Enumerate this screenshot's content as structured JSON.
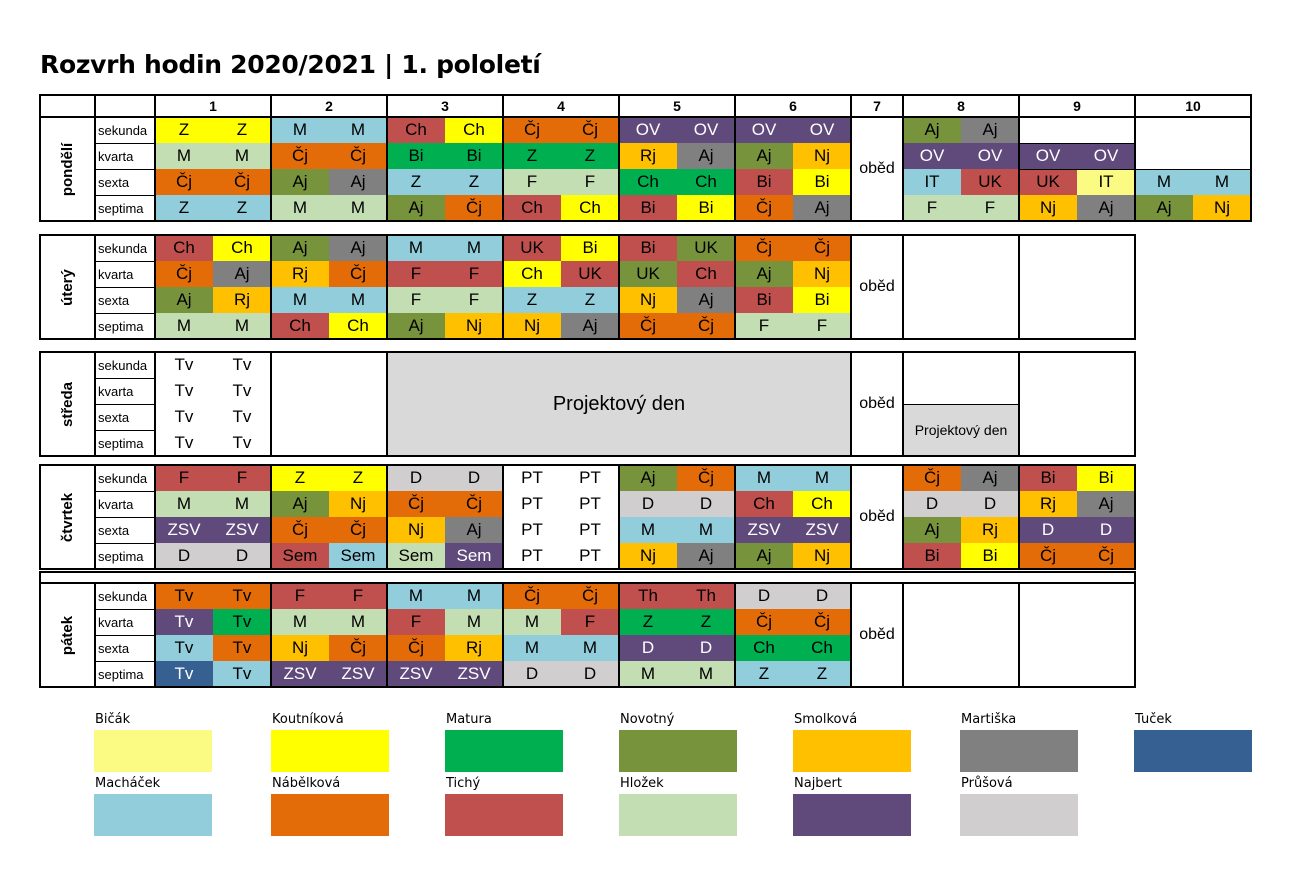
{
  "title": "Rozvrh hodin 2020/2021 | 1. pololetí",
  "periods": [
    "1",
    "2",
    "3",
    "4",
    "5",
    "6",
    "7",
    "8",
    "9",
    "10"
  ],
  "classes": [
    "sekunda",
    "kvarta",
    "sexta",
    "septima"
  ],
  "lunch_label": "oběd",
  "colors": {
    "Bicak": "#FBFA83",
    "Koutnikova": "#FFFF00",
    "Matura": "#00B050",
    "Novotny": "#77933C",
    "Smolkova": "#FFC000",
    "Martiska": "#808080",
    "Tucek": "#376092",
    "Machacek": "#92CDDC",
    "Nabelkova": "#E36C09",
    "Tichy": "#C0504D",
    "Hlozek": "#C4DEB3",
    "Najbert": "#604A7B",
    "Prusova": "#D0CECE",
    "none": "#FFFFFF"
  },
  "legend": [
    {
      "name": "Bičák",
      "color": "Bicak"
    },
    {
      "name": "Koutníková",
      "color": "Koutnikova"
    },
    {
      "name": "Matura",
      "color": "Matura"
    },
    {
      "name": "Novotný",
      "color": "Novotny"
    },
    {
      "name": "Smolková",
      "color": "Smolkova"
    },
    {
      "name": "Martiška",
      "color": "Martiska"
    },
    {
      "name": "Tuček",
      "color": "Tucek"
    },
    {
      "name": "Macháček",
      "color": "Machacek"
    },
    {
      "name": "Nábělková",
      "color": "Nabelkova"
    },
    {
      "name": "Tichý",
      "color": "Tichy"
    },
    {
      "name": "Hložek",
      "color": "Hlozek"
    },
    {
      "name": "Najbert",
      "color": "Najbert"
    },
    {
      "name": "Průšová",
      "color": "Prusova"
    }
  ],
  "days": [
    {
      "name": "pondělí",
      "periods_before_lunch": 6,
      "periods_after_lunch": 3,
      "rows": [
        [
          [
            "Z",
            "Koutnikova"
          ],
          [
            "Z",
            "Koutnikova"
          ],
          [
            "M",
            "Machacek"
          ],
          [
            "M",
            "Machacek"
          ],
          [
            "Ch",
            "Tichy"
          ],
          [
            "Ch",
            "Koutnikova"
          ],
          [
            "Čj",
            "Nabelkova"
          ],
          [
            "Čj",
            "Nabelkova"
          ],
          [
            "OV",
            "Najbert"
          ],
          [
            "OV",
            "Najbert"
          ],
          [
            "OV",
            "Najbert"
          ],
          [
            "OV",
            "Najbert"
          ],
          [
            "Aj",
            "Novotny"
          ],
          [
            "Aj",
            "Martiska"
          ],
          [
            "",
            ""
          ],
          [
            "",
            ""
          ],
          [
            "",
            ""
          ],
          [
            "",
            ""
          ]
        ],
        [
          [
            "M",
            "Hlozek"
          ],
          [
            "M",
            "Hlozek"
          ],
          [
            "Čj",
            "Nabelkova"
          ],
          [
            "Čj",
            "Nabelkova"
          ],
          [
            "Bi",
            "Matura"
          ],
          [
            "Bi",
            "Matura"
          ],
          [
            "Z",
            "Matura"
          ],
          [
            "Z",
            "Matura"
          ],
          [
            "Rj",
            "Smolkova"
          ],
          [
            "Aj",
            "Martiska"
          ],
          [
            "Aj",
            "Novotny"
          ],
          [
            "Nj",
            "Smolkova"
          ],
          [
            "OV",
            "Najbert"
          ],
          [
            "OV",
            "Najbert"
          ],
          [
            "OV",
            "Najbert"
          ],
          [
            "OV",
            "Najbert"
          ],
          [
            "",
            ""
          ],
          [
            "",
            ""
          ]
        ],
        [
          [
            "Čj",
            "Nabelkova"
          ],
          [
            "Čj",
            "Nabelkova"
          ],
          [
            "Aj",
            "Novotny"
          ],
          [
            "Aj",
            "Martiska"
          ],
          [
            "Z",
            "Machacek"
          ],
          [
            "Z",
            "Machacek"
          ],
          [
            "F",
            "Hlozek"
          ],
          [
            "F",
            "Hlozek"
          ],
          [
            "Ch",
            "Matura"
          ],
          [
            "Ch",
            "Matura"
          ],
          [
            "Bi",
            "Tichy"
          ],
          [
            "Bi",
            "Koutnikova"
          ],
          [
            "IT",
            "Machacek"
          ],
          [
            "UK",
            "Tichy"
          ],
          [
            "UK",
            "Tichy"
          ],
          [
            "IT",
            "Bicak"
          ],
          [
            "M",
            "Machacek"
          ],
          [
            "M",
            "Machacek"
          ]
        ],
        [
          [
            "Z",
            "Machacek"
          ],
          [
            "Z",
            "Machacek"
          ],
          [
            "M",
            "Hlozek"
          ],
          [
            "M",
            "Hlozek"
          ],
          [
            "Aj",
            "Novotny"
          ],
          [
            "Čj",
            "Nabelkova"
          ],
          [
            "Ch",
            "Tichy"
          ],
          [
            "Ch",
            "Koutnikova"
          ],
          [
            "Bi",
            "Tichy"
          ],
          [
            "Bi",
            "Koutnikova"
          ],
          [
            "Čj",
            "Nabelkova"
          ],
          [
            "Aj",
            "Martiska"
          ],
          [
            "F",
            "Hlozek"
          ],
          [
            "F",
            "Hlozek"
          ],
          [
            "Nj",
            "Smolkova"
          ],
          [
            "Aj",
            "Martiska"
          ],
          [
            "Aj",
            "Novotny"
          ],
          [
            "Nj",
            "Smolkova"
          ]
        ]
      ]
    },
    {
      "name": "úterý",
      "periods_before_lunch": 6,
      "periods_after_lunch": 2,
      "rows": [
        [
          [
            "Ch",
            "Tichy"
          ],
          [
            "Ch",
            "Koutnikova"
          ],
          [
            "Aj",
            "Novotny"
          ],
          [
            "Aj",
            "Martiska"
          ],
          [
            "M",
            "Machacek"
          ],
          [
            "M",
            "Machacek"
          ],
          [
            "UK",
            "Tichy"
          ],
          [
            "Bi",
            "Koutnikova"
          ],
          [
            "Bi",
            "Tichy"
          ],
          [
            "UK",
            "Novotny"
          ],
          [
            "Čj",
            "Nabelkova"
          ],
          [
            "Čj",
            "Nabelkova"
          ],
          [
            "",
            ""
          ],
          [
            "",
            ""
          ],
          [
            "",
            ""
          ],
          [
            "",
            ""
          ]
        ],
        [
          [
            "Čj",
            "Nabelkova"
          ],
          [
            "Aj",
            "Martiska"
          ],
          [
            "Rj",
            "Smolkova"
          ],
          [
            "Čj",
            "Nabelkova"
          ],
          [
            "F",
            "Tichy"
          ],
          [
            "F",
            "Tichy"
          ],
          [
            "Ch",
            "Koutnikova"
          ],
          [
            "UK",
            "Tichy"
          ],
          [
            "UK",
            "Novotny"
          ],
          [
            "Ch",
            "Tichy"
          ],
          [
            "Aj",
            "Novotny"
          ],
          [
            "Nj",
            "Smolkova"
          ],
          [
            "",
            ""
          ],
          [
            "",
            ""
          ],
          [
            "",
            ""
          ],
          [
            "",
            ""
          ]
        ],
        [
          [
            "Aj",
            "Novotny"
          ],
          [
            "Rj",
            "Smolkova"
          ],
          [
            "M",
            "Machacek"
          ],
          [
            "M",
            "Machacek"
          ],
          [
            "F",
            "Hlozek"
          ],
          [
            "F",
            "Hlozek"
          ],
          [
            "Z",
            "Machacek"
          ],
          [
            "Z",
            "Machacek"
          ],
          [
            "Nj",
            "Smolkova"
          ],
          [
            "Aj",
            "Martiska"
          ],
          [
            "Bi",
            "Tichy"
          ],
          [
            "Bi",
            "Koutnikova"
          ],
          [
            "",
            ""
          ],
          [
            "",
            ""
          ],
          [
            "",
            ""
          ],
          [
            "",
            ""
          ]
        ],
        [
          [
            "M",
            "Hlozek"
          ],
          [
            "M",
            "Hlozek"
          ],
          [
            "Ch",
            "Tichy"
          ],
          [
            "Ch",
            "Koutnikova"
          ],
          [
            "Aj",
            "Novotny"
          ],
          [
            "Nj",
            "Smolkova"
          ],
          [
            "Nj",
            "Smolkova"
          ],
          [
            "Aj",
            "Martiska"
          ],
          [
            "Čj",
            "Nabelkova"
          ],
          [
            "Čj",
            "Nabelkova"
          ],
          [
            "F",
            "Hlozek"
          ],
          [
            "F",
            "Hlozek"
          ],
          [
            "",
            ""
          ],
          [
            "",
            ""
          ],
          [
            "",
            ""
          ],
          [
            "",
            ""
          ]
        ]
      ]
    },
    {
      "name": "středa",
      "project_label": "Projektový den",
      "project_small_label": "Projektový den",
      "rows": [
        [
          [
            "Tv",
            "none"
          ],
          [
            "Tv",
            "none"
          ]
        ],
        [
          [
            "Tv",
            "none"
          ],
          [
            "Tv",
            "none"
          ]
        ],
        [
          [
            "Tv",
            "none"
          ],
          [
            "Tv",
            "none"
          ]
        ],
        [
          [
            "Tv",
            "none"
          ],
          [
            "Tv",
            "none"
          ]
        ]
      ]
    },
    {
      "name": "čtvrtek",
      "periods_before_lunch": 6,
      "periods_after_lunch": 2,
      "rows": [
        [
          [
            "F",
            "Tichy"
          ],
          [
            "F",
            "Tichy"
          ],
          [
            "Z",
            "Koutnikova"
          ],
          [
            "Z",
            "Koutnikova"
          ],
          [
            "D",
            "Prusova"
          ],
          [
            "D",
            "Prusova"
          ],
          [
            "PT",
            "none"
          ],
          [
            "PT",
            "none"
          ],
          [
            "Aj",
            "Novotny"
          ],
          [
            "Čj",
            "Nabelkova"
          ],
          [
            "M",
            "Machacek"
          ],
          [
            "M",
            "Machacek"
          ],
          [
            "Čj",
            "Nabelkova"
          ],
          [
            "Aj",
            "Martiska"
          ],
          [
            "Bi",
            "Tichy"
          ],
          [
            "Bi",
            "Koutnikova"
          ]
        ],
        [
          [
            "M",
            "Hlozek"
          ],
          [
            "M",
            "Hlozek"
          ],
          [
            "Aj",
            "Novotny"
          ],
          [
            "Nj",
            "Smolkova"
          ],
          [
            "Čj",
            "Nabelkova"
          ],
          [
            "Čj",
            "Nabelkova"
          ],
          [
            "PT",
            "none"
          ],
          [
            "PT",
            "none"
          ],
          [
            "D",
            "Prusova"
          ],
          [
            "D",
            "Prusova"
          ],
          [
            "Ch",
            "Tichy"
          ],
          [
            "Ch",
            "Koutnikova"
          ],
          [
            "D",
            "Prusova"
          ],
          [
            "D",
            "Prusova"
          ],
          [
            "Rj",
            "Smolkova"
          ],
          [
            "Aj",
            "Martiska"
          ]
        ],
        [
          [
            "ZSV",
            "Najbert"
          ],
          [
            "ZSV",
            "Najbert"
          ],
          [
            "Čj",
            "Nabelkova"
          ],
          [
            "Čj",
            "Nabelkova"
          ],
          [
            "Nj",
            "Smolkova"
          ],
          [
            "Aj",
            "Martiska"
          ],
          [
            "PT",
            "none"
          ],
          [
            "PT",
            "none"
          ],
          [
            "M",
            "Machacek"
          ],
          [
            "M",
            "Machacek"
          ],
          [
            "ZSV",
            "Najbert"
          ],
          [
            "ZSV",
            "Najbert"
          ],
          [
            "Aj",
            "Novotny"
          ],
          [
            "Rj",
            "Smolkova"
          ],
          [
            "D",
            "Najbert"
          ],
          [
            "D",
            "Najbert"
          ]
        ],
        [
          [
            "D",
            "Prusova"
          ],
          [
            "D",
            "Prusova"
          ],
          [
            "Sem",
            "Tichy"
          ],
          [
            "Sem",
            "Machacek"
          ],
          [
            "Sem",
            "Hlozek"
          ],
          [
            "Sem",
            "Najbert"
          ],
          [
            "PT",
            "none"
          ],
          [
            "PT",
            "none"
          ],
          [
            "Nj",
            "Smolkova"
          ],
          [
            "Aj",
            "Martiska"
          ],
          [
            "Aj",
            "Novotny"
          ],
          [
            "Nj",
            "Smolkova"
          ],
          [
            "Bi",
            "Tichy"
          ],
          [
            "Bi",
            "Koutnikova"
          ],
          [
            "Čj",
            "Nabelkova"
          ],
          [
            "Čj",
            "Nabelkova"
          ]
        ]
      ]
    },
    {
      "name": "pátek",
      "periods_before_lunch": 6,
      "periods_after_lunch": 2,
      "rows": [
        [
          [
            "Tv",
            "Nabelkova"
          ],
          [
            "Tv",
            "Nabelkova"
          ],
          [
            "F",
            "Tichy"
          ],
          [
            "F",
            "Tichy"
          ],
          [
            "M",
            "Machacek"
          ],
          [
            "M",
            "Machacek"
          ],
          [
            "Čj",
            "Nabelkova"
          ],
          [
            "Čj",
            "Nabelkova"
          ],
          [
            "Th",
            "Tichy"
          ],
          [
            "Th",
            "Tichy"
          ],
          [
            "D",
            "Prusova"
          ],
          [
            "D",
            "Prusova"
          ],
          [
            "",
            ""
          ],
          [
            "",
            ""
          ],
          [
            "",
            ""
          ],
          [
            "",
            ""
          ]
        ],
        [
          [
            "Tv",
            "Najbert"
          ],
          [
            "Tv",
            "Matura"
          ],
          [
            "M",
            "Hlozek"
          ],
          [
            "M",
            "Hlozek"
          ],
          [
            "F",
            "Tichy"
          ],
          [
            "M",
            "Hlozek"
          ],
          [
            "M",
            "Hlozek"
          ],
          [
            "F",
            "Tichy"
          ],
          [
            "Z",
            "Matura"
          ],
          [
            "Z",
            "Matura"
          ],
          [
            "Čj",
            "Nabelkova"
          ],
          [
            "Čj",
            "Nabelkova"
          ],
          [
            "",
            ""
          ],
          [
            "",
            ""
          ],
          [
            "",
            ""
          ],
          [
            "",
            ""
          ]
        ],
        [
          [
            "Tv",
            "Machacek"
          ],
          [
            "Tv",
            "Nabelkova"
          ],
          [
            "Nj",
            "Smolkova"
          ],
          [
            "Čj",
            "Nabelkova"
          ],
          [
            "Čj",
            "Nabelkova"
          ],
          [
            "Rj",
            "Smolkova"
          ],
          [
            "M",
            "Machacek"
          ],
          [
            "M",
            "Machacek"
          ],
          [
            "D",
            "Najbert"
          ],
          [
            "D",
            "Najbert"
          ],
          [
            "Ch",
            "Matura"
          ],
          [
            "Ch",
            "Matura"
          ],
          [
            "",
            ""
          ],
          [
            "",
            ""
          ],
          [
            "",
            ""
          ],
          [
            "",
            ""
          ]
        ],
        [
          [
            "Tv",
            "Tucek"
          ],
          [
            "Tv",
            "Machacek"
          ],
          [
            "ZSV",
            "Najbert"
          ],
          [
            "ZSV",
            "Najbert"
          ],
          [
            "ZSV",
            "Najbert"
          ],
          [
            "ZSV",
            "Najbert"
          ],
          [
            "D",
            "Prusova"
          ],
          [
            "D",
            "Prusova"
          ],
          [
            "M",
            "Hlozek"
          ],
          [
            "M",
            "Hlozek"
          ],
          [
            "Z",
            "Machacek"
          ],
          [
            "Z",
            "Machacek"
          ],
          [
            "",
            ""
          ],
          [
            "",
            ""
          ],
          [
            "",
            ""
          ],
          [
            "",
            ""
          ]
        ]
      ]
    }
  ]
}
